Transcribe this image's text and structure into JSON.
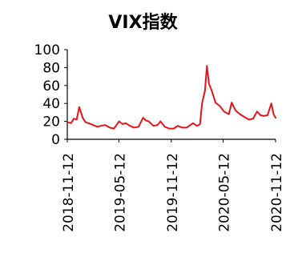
{
  "chart_data": {
    "type": "line",
    "title": "VIX指数",
    "xlabel": "",
    "ylabel": "",
    "ylim": [
      0,
      100
    ],
    "yticks": [
      0,
      20,
      40,
      60,
      80,
      100
    ],
    "x_tick_labels": [
      "2018-11-12",
      "2019-05-12",
      "2019-11-12",
      "2020-05-12",
      "2020-11-12"
    ],
    "x_range": [
      "2018-11-12",
      "2020-11-12"
    ],
    "grid": false,
    "legend": "none",
    "series": [
      {
        "color": "#e8141b",
        "points": [
          [
            "2018-11-12",
            19
          ],
          [
            "2018-11-25",
            18
          ],
          [
            "2018-12-05",
            23
          ],
          [
            "2018-12-15",
            22
          ],
          [
            "2018-12-24",
            36
          ],
          [
            "2019-01-05",
            24
          ],
          [
            "2019-01-15",
            19
          ],
          [
            "2019-01-25",
            18
          ],
          [
            "2019-02-10",
            16
          ],
          [
            "2019-02-25",
            14
          ],
          [
            "2019-03-10",
            15
          ],
          [
            "2019-03-25",
            16
          ],
          [
            "2019-04-10",
            13
          ],
          [
            "2019-04-25",
            12
          ],
          [
            "2019-05-13",
            20
          ],
          [
            "2019-05-25",
            17
          ],
          [
            "2019-06-05",
            18
          ],
          [
            "2019-06-20",
            15
          ],
          [
            "2019-07-05",
            13
          ],
          [
            "2019-07-20",
            14
          ],
          [
            "2019-08-05",
            24
          ],
          [
            "2019-08-15",
            21
          ],
          [
            "2019-08-25",
            20
          ],
          [
            "2019-09-10",
            15
          ],
          [
            "2019-09-25",
            16
          ],
          [
            "2019-10-05",
            20
          ],
          [
            "2019-10-20",
            14
          ],
          [
            "2019-11-05",
            12
          ],
          [
            "2019-11-20",
            12
          ],
          [
            "2019-12-05",
            15
          ],
          [
            "2019-12-20",
            13
          ],
          [
            "2020-01-05",
            13
          ],
          [
            "2020-01-27",
            18
          ],
          [
            "2020-02-10",
            15
          ],
          [
            "2020-02-21",
            17
          ],
          [
            "2020-02-28",
            40
          ],
          [
            "2020-03-09",
            54
          ],
          [
            "2020-03-16",
            82
          ],
          [
            "2020-03-23",
            62
          ],
          [
            "2020-04-01",
            55
          ],
          [
            "2020-04-15",
            41
          ],
          [
            "2020-05-01",
            37
          ],
          [
            "2020-05-15",
            31
          ],
          [
            "2020-06-01",
            28
          ],
          [
            "2020-06-11",
            41
          ],
          [
            "2020-06-25",
            32
          ],
          [
            "2020-07-10",
            28
          ],
          [
            "2020-07-25",
            25
          ],
          [
            "2020-08-10",
            22
          ],
          [
            "2020-08-25",
            23
          ],
          [
            "2020-09-08",
            31
          ],
          [
            "2020-09-20",
            27
          ],
          [
            "2020-10-01",
            26
          ],
          [
            "2020-10-15",
            27
          ],
          [
            "2020-10-28",
            40
          ],
          [
            "2020-11-05",
            28
          ],
          [
            "2020-11-12",
            24
          ]
        ]
      }
    ]
  }
}
